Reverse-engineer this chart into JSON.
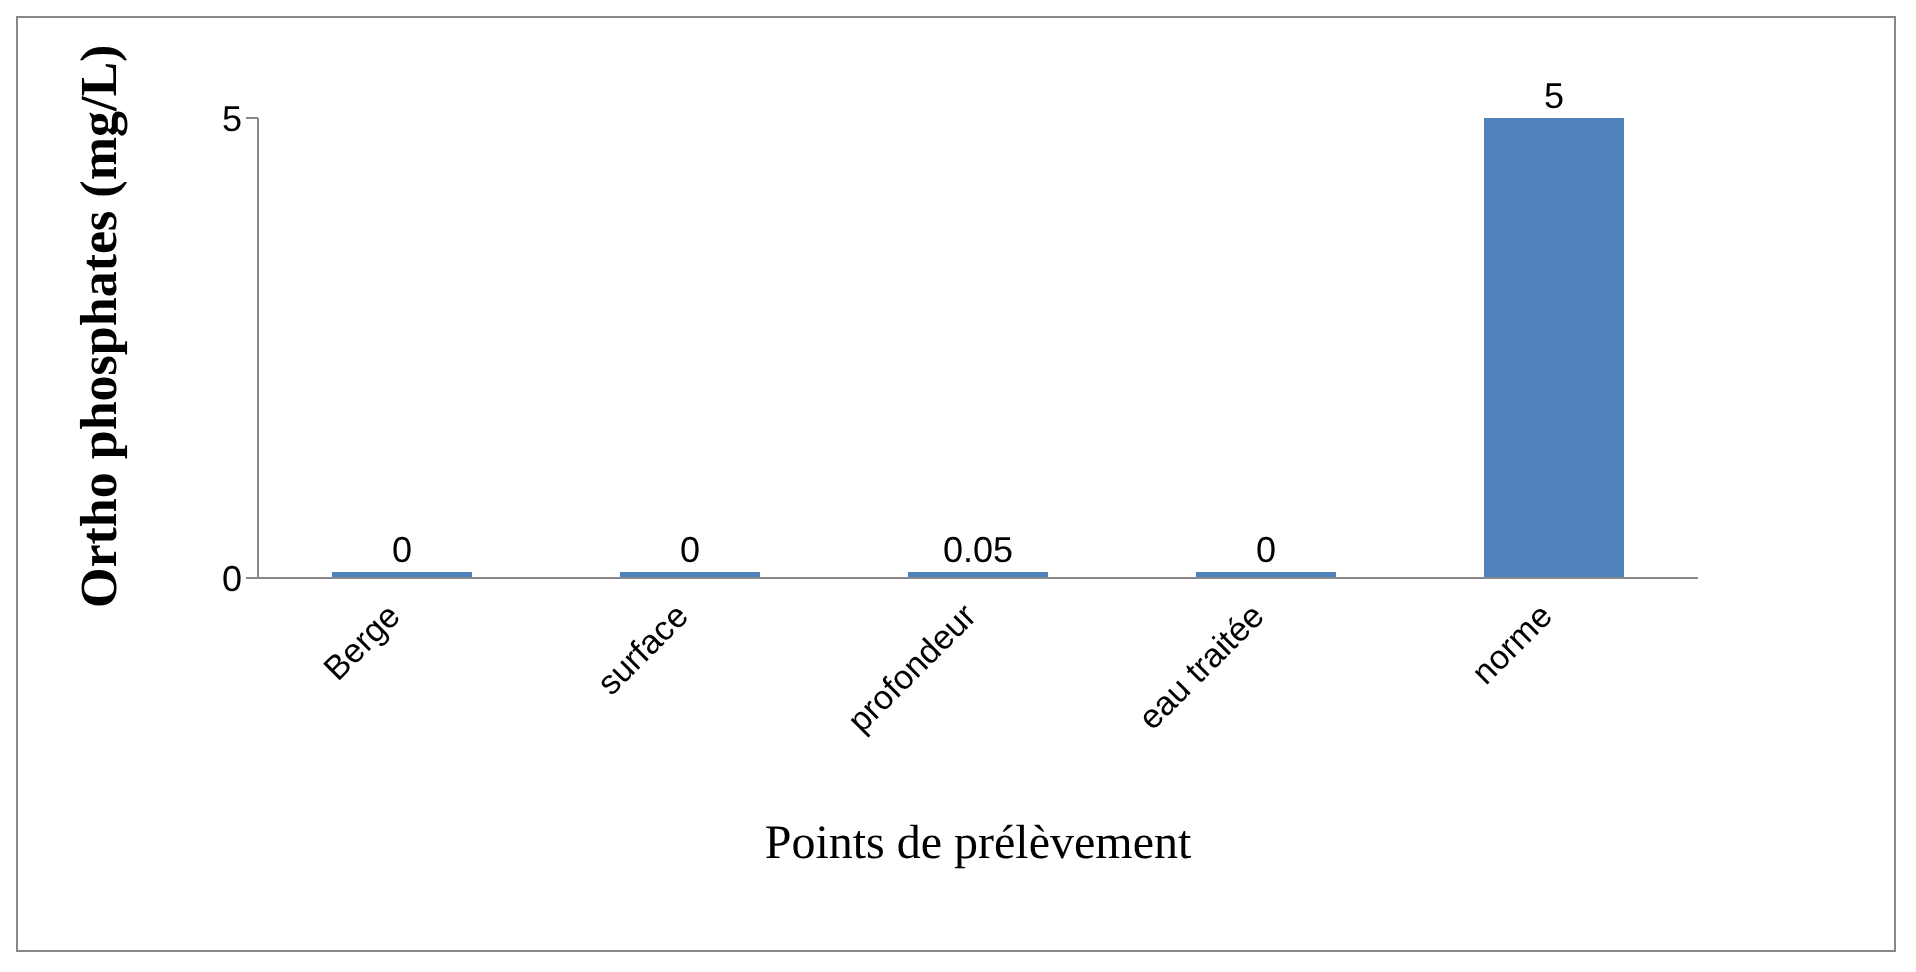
{
  "chart_data": {
    "type": "bar",
    "xlabel": "Points de prélèvement",
    "ylabel": "Ortho phosphates (mg/L)",
    "categories": [
      "Berge",
      "surface",
      "profondeur",
      "eau traitée",
      "norme"
    ],
    "values": [
      0,
      0,
      0.05,
      0,
      5
    ],
    "color": "#4f81bd",
    "ylim": [
      0,
      5
    ],
    "yticks": [
      0,
      5
    ],
    "grid": false,
    "legend": false,
    "data_labels": true
  }
}
